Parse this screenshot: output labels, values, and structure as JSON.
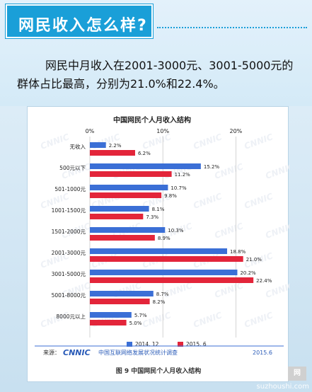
{
  "header": {
    "title": "网民收入怎么样?"
  },
  "summary": "网民中月收入在2001-3000元、3001-5000元的群体占比最高，分别为21.0%和22.4%。",
  "colors": {
    "series_2014": "#3b6fd6",
    "series_2015": "#e3253a",
    "accent": "#1a9fd8"
  },
  "chart_data": {
    "type": "bar",
    "orientation": "horizontal",
    "title": "中国网民个人月收入结构",
    "categories": [
      "无收入",
      "500元以下",
      "501-1000元",
      "1001-1500元",
      "1501-2000元",
      "2001-3000元",
      "3001-5000元",
      "5001-8000元",
      "8000元以上"
    ],
    "series": [
      {
        "name": "2014. 12",
        "values": [
          2.2,
          15.2,
          10.7,
          8.1,
          10.3,
          18.8,
          20.2,
          8.7,
          5.7
        ],
        "color": "#3b6fd6"
      },
      {
        "name": "2015. 6",
        "values": [
          6.2,
          11.2,
          9.8,
          7.3,
          8.9,
          21.0,
          22.4,
          8.2,
          5.0
        ],
        "color": "#e3253a"
      }
    ],
    "value_labels": [
      [
        "2.2%",
        "15.2%",
        "10.7%",
        "8.1%",
        "10.3%",
        "18.8%",
        "20.2%",
        "8.7%",
        "5.7%"
      ],
      [
        "6.2%",
        "11.2%",
        "9.8%",
        "7.3%",
        "8.9%",
        "21.0%",
        "22.4%",
        "8.2%",
        "5.0%"
      ]
    ],
    "ticks": [
      "0%",
      "10%",
      "20%"
    ],
    "xlim": [
      0,
      25
    ],
    "grid": true,
    "legend": "bottom"
  },
  "source": {
    "label": "来源：",
    "brand": "CNNIC",
    "org": "中国互联网络发展状况统计调查",
    "date": "2015.6"
  },
  "caption": "图 9  中国网民个人月收入结构",
  "watermark": "suzhoushi.com"
}
